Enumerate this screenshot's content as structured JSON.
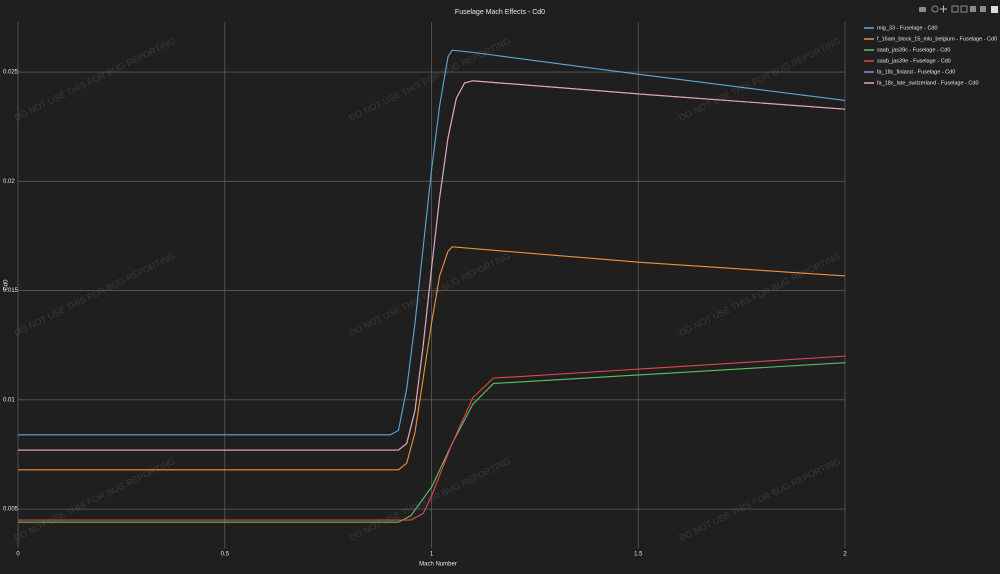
{
  "chart_data": {
    "type": "line",
    "title": "Fuselage Mach Effects - Cd0",
    "x_label": "Mach Number",
    "y_label": "Cd0",
    "watermark": "DO NOT USE THIS FOR BUG REPORTING",
    "xlim": [
      0,
      2
    ],
    "ylim": [
      0.00322,
      0.02729
    ],
    "xticks": [
      0,
      0.5,
      1,
      1.5,
      2
    ],
    "yticks": [
      0.005,
      0.01,
      0.015,
      0.02,
      0.025
    ],
    "grid": true,
    "legend": "right",
    "series": [
      {
        "name": "mig_33 - Fuselage - Cd0",
        "color": "#5fa8d8",
        "x": [
          0,
          0.9,
          0.92,
          0.94,
          0.96,
          0.98,
          1.0,
          1.02,
          1.04,
          1.05,
          1.1,
          1.5,
          2
        ],
        "values": [
          0.0084,
          0.0084,
          0.0086,
          0.0105,
          0.0135,
          0.017,
          0.0205,
          0.0235,
          0.0257,
          0.026,
          0.0259,
          0.0249,
          0.0237
        ]
      },
      {
        "name": "f_16am_block_15_mlu_belgium - Fuselage - Cd0",
        "color": "#f0913a",
        "x": [
          0,
          0.92,
          0.94,
          0.96,
          0.98,
          1.0,
          1.02,
          1.04,
          1.05,
          1.5,
          2
        ],
        "values": [
          0.0068,
          0.0068,
          0.0071,
          0.0085,
          0.011,
          0.0135,
          0.0157,
          0.0168,
          0.017,
          0.0163,
          0.01567
        ]
      },
      {
        "name": "saab_jas39c - Fuselage - Cd0",
        "color": "#5ec15e",
        "x": [
          0,
          0.92,
          0.95,
          1.0,
          1.05,
          1.1,
          1.15,
          1.2,
          2
        ],
        "values": [
          0.0044,
          0.0044,
          0.0047,
          0.006,
          0.008,
          0.0098,
          0.01075,
          0.0108,
          0.0117
        ]
      },
      {
        "name": "saab_jas39e - Fuselage - Cd0",
        "color": "#e0474c",
        "x": [
          0,
          0.95,
          0.98,
          1.0,
          1.05,
          1.1,
          1.15,
          1.2,
          2
        ],
        "values": [
          0.0045,
          0.0045,
          0.0048,
          0.0056,
          0.008,
          0.0101,
          0.011,
          0.01105,
          0.012
        ]
      },
      {
        "name": "fa_18c_finland - Fuselage - Cd0",
        "color": "#a67fcf",
        "x": [
          0,
          0.92,
          0.94,
          0.96,
          0.98,
          1.0,
          1.02,
          1.04,
          1.06,
          1.08,
          1.1,
          1.5,
          2
        ],
        "values": [
          0.0077,
          0.0077,
          0.008,
          0.0095,
          0.0125,
          0.016,
          0.0193,
          0.022,
          0.0238,
          0.0245,
          0.0246,
          0.024,
          0.0233
        ]
      },
      {
        "name": "fa_18c_late_switzerland - Fuselage - Cd0",
        "color": "#e8a5b4",
        "x": [
          0,
          0.92,
          0.94,
          0.96,
          0.98,
          1.0,
          1.02,
          1.04,
          1.06,
          1.08,
          1.1,
          1.5,
          2
        ],
        "values": [
          0.0077,
          0.0077,
          0.008,
          0.0095,
          0.0125,
          0.016,
          0.0193,
          0.022,
          0.0238,
          0.0245,
          0.0246,
          0.024,
          0.0233
        ]
      }
    ]
  }
}
